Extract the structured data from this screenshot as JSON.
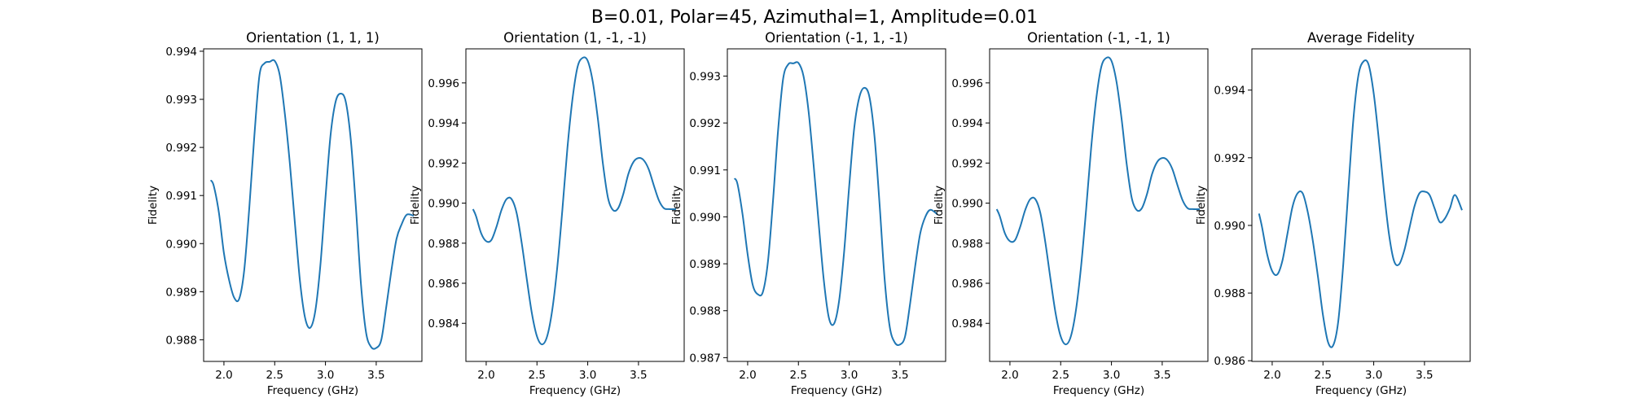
{
  "figure": {
    "suptitle": "B=0.01, Polar=45, Azimuthal=1, Amplitude=0.01",
    "line_color": "#1f77b4"
  },
  "chart_data": [
    {
      "type": "line",
      "title": "Orientation (1, 1, 1)",
      "xlabel": "Frequency (GHz)",
      "ylabel": "Fidelity",
      "xlim": [
        1.8,
        3.95
      ],
      "ylim": [
        0.98755,
        0.99405
      ],
      "xticks": [
        2.0,
        2.5,
        3.0,
        3.5
      ],
      "xtick_labels": [
        "2.0",
        "2.5",
        "3.0",
        "3.5"
      ],
      "yticks": [
        0.988,
        0.989,
        0.99,
        0.991,
        0.992,
        0.993,
        0.994
      ],
      "ytick_labels": [
        "0.988",
        "0.989",
        "0.990",
        "0.991",
        "0.992",
        "0.993",
        "0.994"
      ],
      "series": [
        {
          "x": [
            1.87,
            1.9,
            1.95,
            2.0,
            2.05,
            2.1,
            2.15,
            2.2,
            2.25,
            2.3,
            2.35,
            2.4,
            2.45,
            2.5,
            2.55,
            2.6,
            2.65,
            2.7,
            2.75,
            2.8,
            2.85,
            2.9,
            2.95,
            3.0,
            3.05,
            3.1,
            3.15,
            3.2,
            3.25,
            3.3,
            3.35,
            3.4,
            3.45,
            3.5,
            3.55,
            3.6,
            3.65,
            3.7,
            3.75,
            3.8,
            3.87
          ],
          "values": [
            0.99132,
            0.9912,
            0.99065,
            0.9898,
            0.98925,
            0.98888,
            0.98885,
            0.98945,
            0.99075,
            0.99225,
            0.9935,
            0.99375,
            0.99378,
            0.9938,
            0.9935,
            0.9927,
            0.99165,
            0.9904,
            0.9892,
            0.98845,
            0.98825,
            0.9886,
            0.98955,
            0.99095,
            0.99225,
            0.99295,
            0.99312,
            0.99295,
            0.99215,
            0.99075,
            0.98915,
            0.98815,
            0.98785,
            0.98783,
            0.988,
            0.9887,
            0.98945,
            0.9901,
            0.9904,
            0.9906,
            0.99058
          ]
        }
      ]
    },
    {
      "type": "line",
      "title": "Orientation (1, -1, -1)",
      "xlabel": "Frequency (GHz)",
      "ylabel": "Fidelity",
      "xlim": [
        1.8,
        3.95
      ],
      "ylim": [
        0.9821,
        0.9977
      ],
      "xticks": [
        2.0,
        2.5,
        3.0,
        3.5
      ],
      "xtick_labels": [
        "2.0",
        "2.5",
        "3.0",
        "3.5"
      ],
      "yticks": [
        0.984,
        0.986,
        0.988,
        0.99,
        0.992,
        0.994,
        0.996
      ],
      "ytick_labels": [
        "0.984",
        "0.986",
        "0.988",
        "0.990",
        "0.992",
        "0.994",
        "0.996"
      ],
      "series": [
        {
          "x": [
            1.87,
            1.9,
            1.95,
            2.0,
            2.05,
            2.1,
            2.15,
            2.2,
            2.25,
            2.3,
            2.35,
            2.4,
            2.45,
            2.5,
            2.55,
            2.6,
            2.65,
            2.7,
            2.75,
            2.8,
            2.85,
            2.9,
            2.95,
            3.0,
            3.05,
            3.1,
            3.15,
            3.2,
            3.25,
            3.3,
            3.35,
            3.4,
            3.45,
            3.5,
            3.55,
            3.6,
            3.65,
            3.7,
            3.75,
            3.8,
            3.87
          ],
          "values": [
            0.9897,
            0.98935,
            0.9885,
            0.9881,
            0.98815,
            0.9888,
            0.98965,
            0.9902,
            0.9902,
            0.9895,
            0.988,
            0.9862,
            0.9845,
            0.98335,
            0.98295,
            0.98335,
            0.98465,
            0.9868,
            0.98965,
            0.99275,
            0.9952,
            0.9968,
            0.99725,
            0.9971,
            0.99605,
            0.9942,
            0.99195,
            0.99025,
            0.98965,
            0.98975,
            0.99045,
            0.99145,
            0.99205,
            0.99225,
            0.99215,
            0.9917,
            0.9909,
            0.99015,
            0.98975,
            0.9897,
            0.9897
          ]
        }
      ]
    },
    {
      "type": "line",
      "title": "Orientation (-1, 1, -1)",
      "xlabel": "Frequency (GHz)",
      "ylabel": "Fidelity",
      "xlim": [
        1.8,
        3.95
      ],
      "ylim": [
        0.98692,
        0.99358
      ],
      "xticks": [
        2.0,
        2.5,
        3.0,
        3.5
      ],
      "xtick_labels": [
        "2.0",
        "2.5",
        "3.0",
        "3.5"
      ],
      "yticks": [
        0.987,
        0.988,
        0.989,
        0.99,
        0.991,
        0.992,
        0.993
      ],
      "ytick_labels": [
        "0.987",
        "0.988",
        "0.989",
        "0.990",
        "0.991",
        "0.992",
        "0.993"
      ],
      "series": [
        {
          "x": [
            1.87,
            1.9,
            1.95,
            2.0,
            2.05,
            2.1,
            2.15,
            2.2,
            2.25,
            2.3,
            2.35,
            2.4,
            2.45,
            2.5,
            2.55,
            2.6,
            2.65,
            2.7,
            2.75,
            2.8,
            2.85,
            2.9,
            2.95,
            3.0,
            3.05,
            3.1,
            3.15,
            3.2,
            3.25,
            3.3,
            3.35,
            3.4,
            3.45,
            3.5,
            3.55,
            3.6,
            3.65,
            3.7,
            3.75,
            3.8,
            3.87
          ],
          "values": [
            0.99082,
            0.9907,
            0.99005,
            0.9892,
            0.98855,
            0.98835,
            0.9884,
            0.98905,
            0.99035,
            0.99185,
            0.99295,
            0.99325,
            0.99327,
            0.99328,
            0.993,
            0.99225,
            0.9911,
            0.98985,
            0.98865,
            0.98785,
            0.98772,
            0.9882,
            0.98925,
            0.99065,
            0.9919,
            0.99255,
            0.99275,
            0.99255,
            0.9917,
            0.99025,
            0.98865,
            0.98765,
            0.98732,
            0.98728,
            0.98745,
            0.98815,
            0.98895,
            0.98965,
            0.99,
            0.99015,
            0.99005
          ]
        }
      ]
    },
    {
      "type": "line",
      "title": "Orientation (-1, -1, 1)",
      "xlabel": "Frequency (GHz)",
      "ylabel": "Fidelity",
      "xlim": [
        1.8,
        3.95
      ],
      "ylim": [
        0.9821,
        0.9977
      ],
      "xticks": [
        2.0,
        2.5,
        3.0,
        3.5
      ],
      "xtick_labels": [
        "2.0",
        "2.5",
        "3.0",
        "3.5"
      ],
      "yticks": [
        0.984,
        0.986,
        0.988,
        0.99,
        0.992,
        0.994,
        0.996
      ],
      "ytick_labels": [
        "0.984",
        "0.986",
        "0.988",
        "0.990",
        "0.992",
        "0.994",
        "0.996"
      ],
      "series": [
        {
          "x": [
            1.87,
            1.9,
            1.95,
            2.0,
            2.05,
            2.1,
            2.15,
            2.2,
            2.25,
            2.3,
            2.35,
            2.4,
            2.45,
            2.5,
            2.55,
            2.6,
            2.65,
            2.7,
            2.75,
            2.8,
            2.85,
            2.9,
            2.95,
            3.0,
            3.05,
            3.1,
            3.15,
            3.2,
            3.25,
            3.3,
            3.35,
            3.4,
            3.45,
            3.5,
            3.55,
            3.6,
            3.65,
            3.7,
            3.75,
            3.8,
            3.87
          ],
          "values": [
            0.9897,
            0.98935,
            0.9885,
            0.9881,
            0.98815,
            0.9888,
            0.98965,
            0.9902,
            0.9902,
            0.9895,
            0.988,
            0.9862,
            0.9845,
            0.98335,
            0.98295,
            0.98335,
            0.98465,
            0.9868,
            0.98965,
            0.99275,
            0.9952,
            0.9968,
            0.99725,
            0.9971,
            0.99605,
            0.9942,
            0.99195,
            0.99025,
            0.98965,
            0.98975,
            0.99045,
            0.99145,
            0.99205,
            0.99225,
            0.99215,
            0.9917,
            0.9909,
            0.99015,
            0.98975,
            0.9897,
            0.9897
          ]
        }
      ]
    },
    {
      "type": "line",
      "title": "Average Fidelity",
      "xlabel": "Frequency (GHz)",
      "ylabel": "Fidelity",
      "xlim": [
        1.8,
        3.95
      ],
      "ylim": [
        0.98598,
        0.99522
      ],
      "xticks": [
        2.0,
        2.5,
        3.0,
        3.5
      ],
      "xtick_labels": [
        "2.0",
        "2.5",
        "3.0",
        "3.5"
      ],
      "yticks": [
        0.986,
        0.988,
        0.99,
        0.992,
        0.994
      ],
      "ytick_labels": [
        "0.986",
        "0.988",
        "0.990",
        "0.992",
        "0.994"
      ],
      "series": [
        {
          "x": [
            1.87,
            1.9,
            1.95,
            2.0,
            2.05,
            2.1,
            2.15,
            2.2,
            2.25,
            2.3,
            2.35,
            2.4,
            2.45,
            2.5,
            2.55,
            2.6,
            2.65,
            2.7,
            2.75,
            2.8,
            2.85,
            2.9,
            2.95,
            3.0,
            3.05,
            3.1,
            3.15,
            3.2,
            3.25,
            3.3,
            3.35,
            3.4,
            3.45,
            3.5,
            3.55,
            3.6,
            3.65,
            3.7,
            3.75,
            3.8,
            3.87
          ],
          "values": [
            0.99035,
            0.98995,
            0.98915,
            0.98865,
            0.98855,
            0.98895,
            0.98975,
            0.99055,
            0.99095,
            0.99095,
            0.9904,
            0.98955,
            0.9885,
            0.98735,
            0.98655,
            0.98645,
            0.98715,
            0.98885,
            0.99105,
            0.99315,
            0.99445,
            0.99485,
            0.99475,
            0.9939,
            0.99255,
            0.99105,
            0.98975,
            0.98895,
            0.98885,
            0.98925,
            0.9899,
            0.99055,
            0.99095,
            0.991,
            0.9909,
            0.9905,
            0.9901,
            0.9902,
            0.9905,
            0.9909,
            0.99045
          ]
        }
      ]
    }
  ]
}
